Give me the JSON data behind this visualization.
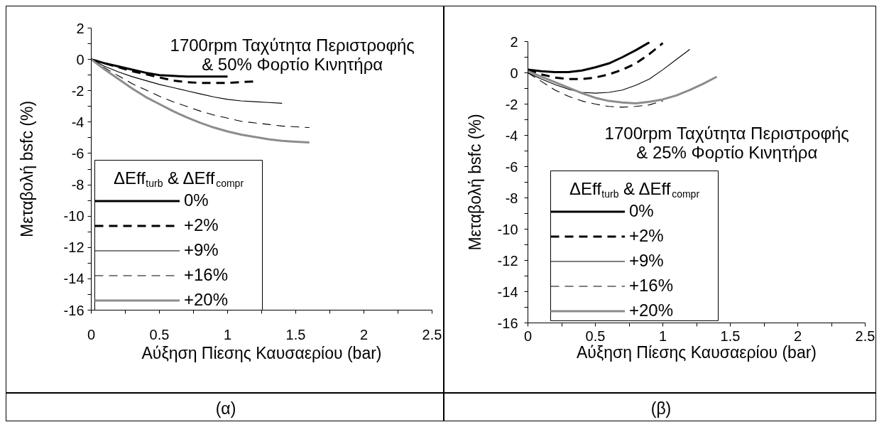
{
  "chart_data": [
    {
      "type": "line",
      "annotations": [
        "1700rpm Ταχύτητα Περιστροφής\n& 50% Φορτίο Κινητήρα",
        "(α)"
      ],
      "xlabel": "Αύξηση Πίεσης Καυσαερίου (bar)",
      "ylabel": "Μεταβολή bsfc (%)",
      "legend_title": "ΔEff$_{turb}$ & ΔEff$_{compr}$",
      "legend": "bottom left",
      "xlim": [
        0,
        2.5
      ],
      "xticks": [
        0,
        {
          "value": 0.25,
          "label": null
        },
        0.5,
        {
          "value": 0.75,
          "label": null
        },
        1,
        {
          "value": 1.25,
          "label": null
        },
        1.5,
        {
          "value": 1.75,
          "label": null
        },
        2,
        {
          "value": 2.25,
          "label": null
        },
        2.5
      ],
      "ylim": [
        -16,
        2
      ],
      "yticks": [
        2,
        {
          "value": 1,
          "label": null
        },
        0,
        {
          "value": -1,
          "label": null
        },
        -2,
        {
          "value": -3,
          "label": null
        },
        -4,
        {
          "value": -5,
          "label": null
        },
        -6,
        {
          "value": -7,
          "label": null
        },
        -8,
        {
          "value": -9,
          "label": null
        },
        -10,
        {
          "value": -11,
          "label": null
        },
        -12,
        {
          "value": -13,
          "label": null
        },
        -14,
        {
          "value": -15,
          "label": null
        },
        -16
      ],
      "series": [
        {
          "name": "0%",
          "color": "#000000",
          "line_style": "solid",
          "x": [
            0,
            0.1,
            0.2,
            0.3,
            0.4,
            0.5,
            0.6,
            0.7,
            0.8,
            0.9,
            1.0
          ],
          "values": [
            0,
            -0.25,
            -0.45,
            -0.65,
            -0.85,
            -1,
            -1.05,
            -1.1,
            -1.1,
            -1.1,
            -1.1
          ]
        },
        {
          "name": "+2%",
          "color": "#000000",
          "line_style": "dashed",
          "x": [
            0,
            0.1,
            0.2,
            0.3,
            0.4,
            0.5,
            0.6,
            0.7,
            0.8,
            0.9,
            1.0,
            1.1,
            1.2
          ],
          "values": [
            0,
            -0.25,
            -0.5,
            -0.75,
            -0.95,
            -1.15,
            -1.35,
            -1.45,
            -1.5,
            -1.5,
            -1.5,
            -1.45,
            -1.4
          ]
        },
        {
          "name": "+9%",
          "color": "#000000",
          "line_style": "solid",
          "x": [
            0,
            0.1,
            0.2,
            0.3,
            0.4,
            0.5,
            0.6,
            0.7,
            0.8,
            0.9,
            1.0,
            1.1,
            1.2,
            1.3,
            1.4
          ],
          "values": [
            0,
            -0.45,
            -0.8,
            -1.1,
            -1.35,
            -1.6,
            -1.8,
            -2,
            -2.2,
            -2.4,
            -2.55,
            -2.65,
            -2.7,
            -2.75,
            -2.8
          ]
        },
        {
          "name": "+16%",
          "color": "#000000",
          "line_style": "dashed",
          "x": [
            0,
            0.1,
            0.2,
            0.3,
            0.4,
            0.5,
            0.6,
            0.7,
            0.8,
            0.9,
            1.0,
            1.1,
            1.2,
            1.3,
            1.4,
            1.5,
            1.6
          ],
          "values": [
            0,
            -0.55,
            -1.05,
            -1.55,
            -1.95,
            -2.35,
            -2.7,
            -3,
            -3.3,
            -3.55,
            -3.75,
            -3.95,
            -4.05,
            -4.15,
            -4.25,
            -4.3,
            -4.35
          ]
        },
        {
          "name": "+20%",
          "color": "#8c8c8c",
          "line_style": "solid",
          "x": [
            0,
            0.1,
            0.2,
            0.3,
            0.4,
            0.5,
            0.6,
            0.7,
            0.8,
            0.9,
            1.0,
            1.1,
            1.2,
            1.3,
            1.4,
            1.5,
            1.6
          ],
          "values": [
            0,
            -0.65,
            -1.25,
            -1.85,
            -2.4,
            -2.85,
            -3.3,
            -3.7,
            -4.05,
            -4.35,
            -4.6,
            -4.8,
            -4.95,
            -5.1,
            -5.2,
            -5.25,
            -5.3
          ]
        }
      ]
    },
    {
      "type": "line",
      "annotations": [
        "1700rpm Ταχύτητα Περιστροφής\n& 25% Φορτίο Κινητήρα",
        "(β)"
      ],
      "xlabel": "Αύξηση Πίεσης Καυσαερίου (bar)",
      "ylabel": "Μεταβολή bsfc (%)",
      "legend_title": "ΔEff$_{turb}$ & ΔEff$_{compr}$",
      "legend": "bottom left",
      "xlim": [
        0,
        2.5
      ],
      "xticks": [
        0,
        {
          "value": 0.25,
          "label": null
        },
        0.5,
        {
          "value": 0.75,
          "label": null
        },
        1,
        {
          "value": 1.25,
          "label": null
        },
        1.5,
        {
          "value": 1.75,
          "label": null
        },
        2,
        {
          "value": 2.25,
          "label": null
        },
        2.5
      ],
      "ylim": [
        -16,
        2
      ],
      "yticks": [
        2,
        {
          "value": 1,
          "label": null
        },
        0,
        {
          "value": -1,
          "label": null
        },
        -2,
        {
          "value": -3,
          "label": null
        },
        -4,
        {
          "value": -5,
          "label": null
        },
        -6,
        {
          "value": -7,
          "label": null
        },
        -8,
        {
          "value": -9,
          "label": null
        },
        -10,
        {
          "value": -11,
          "label": null
        },
        -12,
        {
          "value": -13,
          "label": null
        },
        -14,
        {
          "value": -15,
          "label": null
        },
        -16
      ],
      "series": [
        {
          "name": "0%",
          "color": "#000000",
          "line_style": "solid",
          "x": [
            0,
            0.1,
            0.2,
            0.3,
            0.4,
            0.5,
            0.6,
            0.7,
            0.8,
            0.9
          ],
          "values": [
            0.2,
            0.1,
            0.05,
            0.05,
            0.15,
            0.35,
            0.6,
            1,
            1.45,
            1.95
          ]
        },
        {
          "name": "+2%",
          "color": "#000000",
          "line_style": "dashed",
          "x": [
            0,
            0.1,
            0.2,
            0.3,
            0.4,
            0.5,
            0.6,
            0.7,
            0.8,
            0.9,
            1.0
          ],
          "values": [
            0.2,
            -0.1,
            -0.3,
            -0.4,
            -0.4,
            -0.3,
            -0.1,
            0.2,
            0.6,
            1.2,
            1.9
          ]
        },
        {
          "name": "+9%",
          "color": "#000000",
          "line_style": "solid",
          "x": [
            0,
            0.1,
            0.2,
            0.3,
            0.4,
            0.5,
            0.6,
            0.7,
            0.8,
            0.9,
            1.0,
            1.1,
            1.2
          ],
          "values": [
            0,
            -0.4,
            -0.75,
            -1.05,
            -1.25,
            -1.3,
            -1.25,
            -1.1,
            -0.8,
            -0.4,
            0.2,
            0.85,
            1.5
          ]
        },
        {
          "name": "+16%",
          "color": "#000000",
          "line_style": "dashed",
          "x": [
            0,
            0.1,
            0.2,
            0.3,
            0.4,
            0.5,
            0.6,
            0.7,
            0.8,
            0.9,
            1.0
          ],
          "values": [
            0,
            -0.55,
            -1.1,
            -1.5,
            -1.8,
            -2,
            -2.15,
            -2.2,
            -2.15,
            -2.05,
            -1.8
          ]
        },
        {
          "name": "+20%",
          "color": "#8c8c8c",
          "line_style": "solid",
          "x": [
            0,
            0.1,
            0.2,
            0.3,
            0.4,
            0.5,
            0.6,
            0.7,
            0.8,
            0.9,
            1.0,
            1.1,
            1.2,
            1.3,
            1.4
          ],
          "values": [
            0.1,
            -0.25,
            -0.6,
            -0.95,
            -1.3,
            -1.6,
            -1.8,
            -1.9,
            -1.95,
            -1.85,
            -1.7,
            -1.45,
            -1.1,
            -0.7,
            -0.25
          ]
        }
      ]
    }
  ]
}
